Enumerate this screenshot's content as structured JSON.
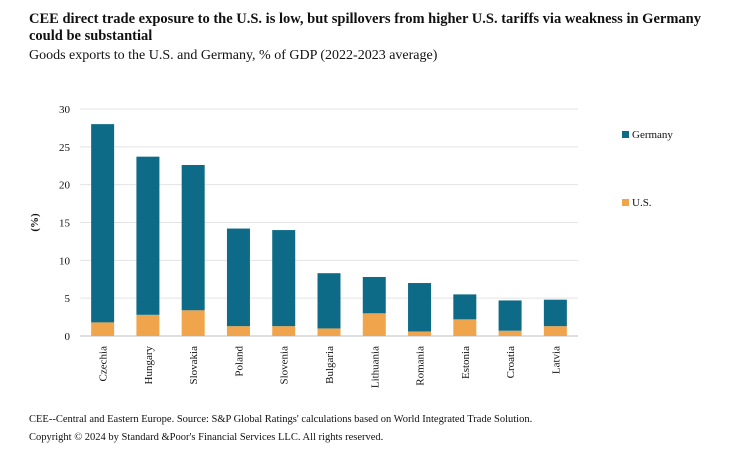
{
  "title": "CEE direct trade exposure to the U.S. is low, but spillovers from higher U.S. tariffs via weakness in Germany could be substantial",
  "subtitle": "Goods exports to the U.S. and Germany, % of GDP (2022-2023 average)",
  "footnote": "CEE--Central and Eastern Europe. Source: S&P Global Ratings' calculations based on World Integrated Trade Solution.",
  "copyright": "Copyright © 2024 by Standard &Poor's Financial Services LLC. All rights reserved.",
  "colors": {
    "germany": "#0d6b87",
    "us": "#f0a54c",
    "grid": "#e3e3e3",
    "axis": "#bfbfbf"
  },
  "chart_data": {
    "type": "bar",
    "stacked": true,
    "categories": [
      "Czechia",
      "Hungary",
      "Slovakia",
      "Poland",
      "Slovenia",
      "Bulgaria",
      "Lithuania",
      "Romania",
      "Estonia",
      "Croatia",
      "Latvia"
    ],
    "series": [
      {
        "name": "U.S.",
        "values": [
          1.8,
          2.8,
          3.4,
          1.3,
          1.3,
          1.0,
          3.0,
          0.6,
          2.2,
          0.7,
          1.3
        ]
      },
      {
        "name": "Germany",
        "values": [
          26.2,
          20.9,
          19.2,
          12.9,
          12.7,
          7.3,
          4.8,
          6.4,
          3.3,
          4.0,
          3.5
        ]
      }
    ],
    "legend": [
      "Germany",
      "U.S."
    ],
    "legend_position": "right",
    "ylabel": "(%)",
    "ylim": [
      0,
      30
    ],
    "yticks": [
      0,
      5,
      10,
      15,
      20,
      25,
      30
    ],
    "grid": true
  }
}
